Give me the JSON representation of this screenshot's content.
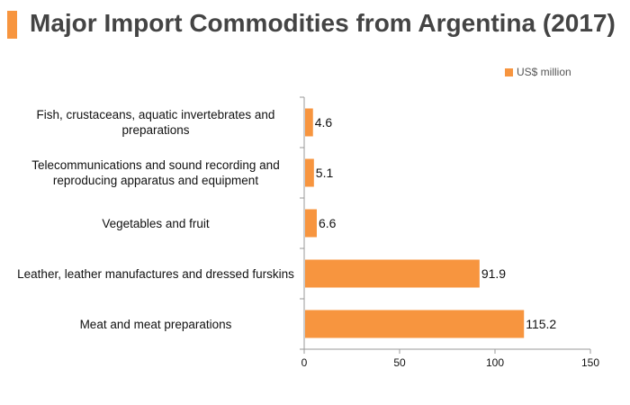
{
  "chart_data": {
    "type": "bar",
    "orientation": "horizontal",
    "title": "Major Import Commodities from Argentina (2017)",
    "legend": {
      "label": "US$ million",
      "position": "top-right"
    },
    "categories": [
      "Fish, crustaceans, aquatic invertebrates and preparations",
      "Telecommunications and sound recording and reproducing apparatus and equipment",
      "Vegetables and fruit",
      "Leather, leather manufactures and dressed furskins",
      "Meat and meat preparations"
    ],
    "series": [
      {
        "name": "US$ million",
        "values": [
          4.6,
          5.1,
          6.6,
          91.9,
          115.2
        ]
      }
    ],
    "data_labels": [
      "4.6",
      "5.1",
      "6.6",
      "91.9",
      "115.2"
    ],
    "xlim": [
      0,
      150
    ],
    "x_ticks": [
      "0",
      "50",
      "100",
      "150"
    ],
    "grid": false,
    "bar_color": "#f7953f",
    "accent_color": "#f7953f"
  }
}
